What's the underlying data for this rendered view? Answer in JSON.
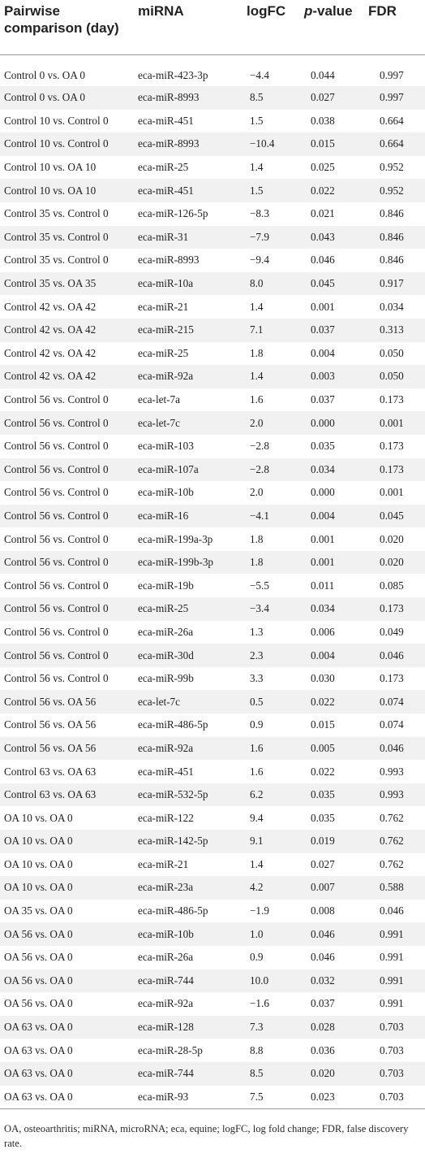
{
  "headers": {
    "comparison": "Pairwise comparison (day)",
    "mirna": "miRNA",
    "logfc": "logFC",
    "pvalue_italic": "p",
    "pvalue_rest": "-value",
    "fdr": "FDR"
  },
  "rows": [
    [
      "Control 0 vs. OA 0",
      "eca-miR-423-3p",
      "−4.4",
      "0.044",
      "0.997"
    ],
    [
      "Control 0 vs. OA 0",
      "eca-miR-8993",
      "8.5",
      "0.027",
      "0.997"
    ],
    [
      "Control 10 vs. Control 0",
      "eca-miR-451",
      "1.5",
      "0.038",
      "0.664"
    ],
    [
      "Control 10 vs. Control 0",
      "eca-miR-8993",
      "−10.4",
      "0.015",
      "0.664"
    ],
    [
      "Control 10 vs. OA 10",
      "eca-miR-25",
      "1.4",
      "0.025",
      "0.952"
    ],
    [
      "Control 10 vs. OA 10",
      "eca-miR-451",
      "1.5",
      "0.022",
      "0.952"
    ],
    [
      "Control 35 vs. Control 0",
      "eca-miR-126-5p",
      "−8.3",
      "0.021",
      "0.846"
    ],
    [
      "Control 35 vs. Control 0",
      "eca-miR-31",
      "−7.9",
      "0.043",
      "0.846"
    ],
    [
      "Control 35 vs. Control 0",
      "eca-miR-8993",
      "−9.4",
      "0.046",
      "0.846"
    ],
    [
      "Control 35 vs. OA 35",
      "eca-miR-10a",
      "8.0",
      "0.045",
      "0.917"
    ],
    [
      "Control 42 vs. OA 42",
      "eca-miR-21",
      "1.4",
      "0.001",
      "0.034"
    ],
    [
      "Control 42 vs. OA 42",
      "eca-miR-215",
      "7.1",
      "0.037",
      "0.313"
    ],
    [
      "Control 42 vs. OA 42",
      "eca-miR-25",
      "1.8",
      "0.004",
      "0.050"
    ],
    [
      "Control 42 vs. OA 42",
      "eca-miR-92a",
      "1.4",
      "0.003",
      "0.050"
    ],
    [
      "Control 56 vs. Control 0",
      "eca-let-7a",
      "1.6",
      "0.037",
      "0.173"
    ],
    [
      "Control 56 vs. Control 0",
      "eca-let-7c",
      "2.0",
      "0.000",
      "0.001"
    ],
    [
      "Control 56 vs. Control 0",
      "eca-miR-103",
      "−2.8",
      "0.035",
      "0.173"
    ],
    [
      "Control 56 vs. Control 0",
      "eca-miR-107a",
      "−2.8",
      "0.034",
      "0.173"
    ],
    [
      "Control 56 vs. Control 0",
      "eca-miR-10b",
      "2.0",
      "0.000",
      "0.001"
    ],
    [
      "Control 56 vs. Control 0",
      "eca-miR-16",
      "−4.1",
      "0.004",
      "0.045"
    ],
    [
      "Control 56 vs. Control 0",
      "eca-miR-199a-3p",
      "1.8",
      "0.001",
      "0.020"
    ],
    [
      "Control 56 vs. Control 0",
      "eca-miR-199b-3p",
      "1.8",
      "0.001",
      "0.020"
    ],
    [
      "Control 56 vs. Control 0",
      "eca-miR-19b",
      "−5.5",
      "0.011",
      "0.085"
    ],
    [
      "Control 56 vs. Control 0",
      "eca-miR-25",
      "−3.4",
      "0.034",
      "0.173"
    ],
    [
      "Control 56 vs. Control 0",
      "eca-miR-26a",
      "1.3",
      "0.006",
      "0.049"
    ],
    [
      "Control 56 vs. Control 0",
      "eca-miR-30d",
      "2.3",
      "0.004",
      "0.046"
    ],
    [
      "Control 56 vs. Control 0",
      "eca-miR-99b",
      "3.3",
      "0.030",
      "0.173"
    ],
    [
      "Control 56 vs. OA 56",
      "eca-let-7c",
      "0.5",
      "0.022",
      "0.074"
    ],
    [
      "Control 56 vs. OA 56",
      "eca-miR-486-5p",
      "0.9",
      "0.015",
      "0.074"
    ],
    [
      "Control 56 vs. OA 56",
      "eca-miR-92a",
      "1.6",
      "0.005",
      "0.046"
    ],
    [
      "Control 63 vs. OA 63",
      "eca-miR-451",
      "1.6",
      "0.022",
      "0.993"
    ],
    [
      "Control 63 vs. OA 63",
      "eca-miR-532-5p",
      "6.2",
      "0.035",
      "0.993"
    ],
    [
      "OA 10 vs. OA 0",
      "eca-miR-122",
      "9.4",
      "0.035",
      "0.762"
    ],
    [
      "OA 10 vs. OA 0",
      "eca-miR-142-5p",
      "9.1",
      "0.019",
      "0.762"
    ],
    [
      "OA 10 vs. OA 0",
      "eca-miR-21",
      "1.4",
      "0.027",
      "0.762"
    ],
    [
      "OA 10 vs. OA 0",
      "eca-miR-23a",
      "4.2",
      "0.007",
      "0.588"
    ],
    [
      "OA 35 vs. OA 0",
      "eca-miR-486-5p",
      "−1.9",
      "0.008",
      "0.046"
    ],
    [
      "OA 56 vs. OA 0",
      "eca-miR-10b",
      "1.0",
      "0.046",
      "0.991"
    ],
    [
      "OA 56 vs. OA 0",
      "eca-miR-26a",
      "0.9",
      "0.046",
      "0.991"
    ],
    [
      "OA 56 vs. OA 0",
      "eca-miR-744",
      "10.0",
      "0.032",
      "0.991"
    ],
    [
      "OA 56 vs. OA 0",
      "eca-miR-92a",
      "−1.6",
      "0.037",
      "0.991"
    ],
    [
      "OA 63 vs. OA 0",
      "eca-miR-128",
      "7.3",
      "0.028",
      "0.703"
    ],
    [
      "OA 63 vs. OA 0",
      "eca-miR-28-5p",
      "8.8",
      "0.036",
      "0.703"
    ],
    [
      "OA 63 vs. OA 0",
      "eca-miR-744",
      "8.5",
      "0.020",
      "0.703"
    ],
    [
      "OA 63 vs. OA 0",
      "eca-miR-93",
      "7.5",
      "0.023",
      "0.703"
    ]
  ],
  "footnote": "OA, osteoarthritis; miRNA, microRNA; eca, equine; logFC, log fold change; FDR, false discovery rate."
}
